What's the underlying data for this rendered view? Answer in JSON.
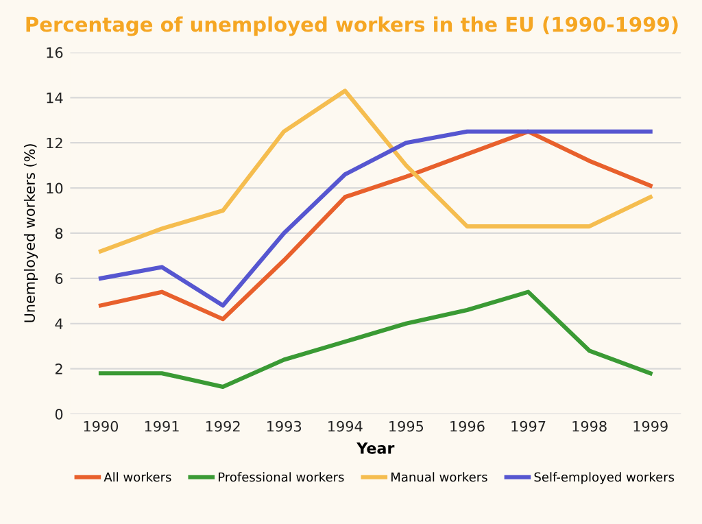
{
  "chart_data": {
    "type": "line",
    "title": "Percentage of unemployed workers in the EU (1990-1999)",
    "xlabel": "Year",
    "ylabel": "Unemployed workers (%)",
    "categories": [
      "1990",
      "1991",
      "1992",
      "1993",
      "1994",
      "1995",
      "1996",
      "1997",
      "1998",
      "1999"
    ],
    "series": [
      {
        "name": "All workers",
        "color": "#e8602c",
        "values": [
          4.8,
          5.4,
          4.2,
          6.8,
          9.6,
          10.5,
          11.5,
          12.5,
          11.2,
          10.1
        ]
      },
      {
        "name": "Professional workers",
        "color": "#3a9a34",
        "values": [
          1.8,
          1.8,
          1.2,
          2.4,
          3.2,
          4.0,
          4.6,
          5.4,
          2.8,
          1.8
        ]
      },
      {
        "name": "Manual workers",
        "color": "#f5bd4f",
        "values": [
          7.2,
          8.2,
          9.0,
          12.5,
          14.3,
          11.0,
          8.3,
          8.3,
          8.3,
          9.6
        ]
      },
      {
        "name": "Self-employed workers",
        "color": "#5656d0",
        "values": [
          6.0,
          6.5,
          4.8,
          8.0,
          10.6,
          12.0,
          12.5,
          12.5,
          12.5,
          12.5
        ]
      }
    ],
    "ylim": [
      0,
      16
    ],
    "yticks": [
      0,
      2,
      4,
      6,
      8,
      10,
      12,
      14,
      16
    ],
    "grid": "y",
    "legend": "bottom",
    "marker": "none",
    "line_style": "solid"
  }
}
